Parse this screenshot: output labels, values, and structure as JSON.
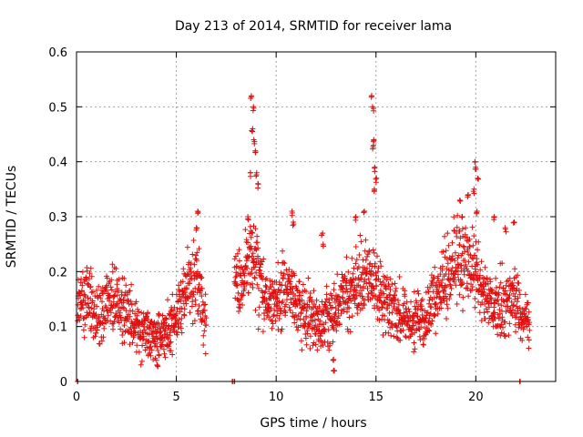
{
  "chart_data": {
    "type": "scatter",
    "title": "Day 213 of 2014, SRMTID for receiver lama",
    "xlabel": "GPS time / hours",
    "ylabel": "SRMTID / TECUs",
    "xlim": [
      0,
      24
    ],
    "ylim": [
      0,
      0.6
    ],
    "x_ticks": [
      0,
      5,
      10,
      15,
      20
    ],
    "x_tick_labels": [
      "0",
      "5",
      "10",
      "15",
      "20"
    ],
    "y_ticks": [
      0,
      0.1,
      0.2,
      0.3,
      0.4,
      0.5,
      0.6
    ],
    "y_tick_labels": [
      "0",
      "0.1",
      "0.2",
      "0.3",
      "0.4",
      "0.5",
      "0.6"
    ],
    "grid": true,
    "marker": "+",
    "color": "#e01010",
    "series_name": "SRMTID",
    "profile_description": "Dense cloud of points; mean level vs hour with spread",
    "profile": [
      {
        "x": 0.0,
        "y": 0.14
      },
      {
        "x": 0.5,
        "y": 0.15
      },
      {
        "x": 1.0,
        "y": 0.13
      },
      {
        "x": 1.5,
        "y": 0.14
      },
      {
        "x": 2.0,
        "y": 0.15
      },
      {
        "x": 2.5,
        "y": 0.13
      },
      {
        "x": 3.0,
        "y": 0.1
      },
      {
        "x": 3.5,
        "y": 0.085
      },
      {
        "x": 4.0,
        "y": 0.075
      },
      {
        "x": 4.5,
        "y": 0.1
      },
      {
        "x": 5.0,
        "y": 0.12
      },
      {
        "x": 5.5,
        "y": 0.17
      },
      {
        "x": 6.0,
        "y": 0.19
      },
      {
        "x": 6.5,
        "y": 0.1
      },
      {
        "x": 7.9,
        "y": 0.2
      },
      {
        "x": 8.3,
        "y": 0.19
      },
      {
        "x": 8.7,
        "y": 0.24
      },
      {
        "x": 9.0,
        "y": 0.2
      },
      {
        "x": 9.5,
        "y": 0.15
      },
      {
        "x": 10.0,
        "y": 0.14
      },
      {
        "x": 10.5,
        "y": 0.17
      },
      {
        "x": 11.0,
        "y": 0.15
      },
      {
        "x": 11.5,
        "y": 0.12
      },
      {
        "x": 12.0,
        "y": 0.11
      },
      {
        "x": 12.5,
        "y": 0.12
      },
      {
        "x": 13.0,
        "y": 0.13
      },
      {
        "x": 13.5,
        "y": 0.16
      },
      {
        "x": 14.0,
        "y": 0.17
      },
      {
        "x": 14.5,
        "y": 0.2
      },
      {
        "x": 15.0,
        "y": 0.18
      },
      {
        "x": 15.5,
        "y": 0.14
      },
      {
        "x": 16.0,
        "y": 0.13
      },
      {
        "x": 16.5,
        "y": 0.11
      },
      {
        "x": 17.0,
        "y": 0.11
      },
      {
        "x": 17.5,
        "y": 0.12
      },
      {
        "x": 18.0,
        "y": 0.16
      },
      {
        "x": 18.5,
        "y": 0.18
      },
      {
        "x": 19.0,
        "y": 0.22
      },
      {
        "x": 19.5,
        "y": 0.22
      },
      {
        "x": 20.0,
        "y": 0.2
      },
      {
        "x": 20.5,
        "y": 0.16
      },
      {
        "x": 21.0,
        "y": 0.13
      },
      {
        "x": 21.5,
        "y": 0.15
      },
      {
        "x": 22.0,
        "y": 0.14
      },
      {
        "x": 22.5,
        "y": 0.12
      },
      {
        "x": 22.7,
        "y": 0.1
      }
    ],
    "spikes": [
      {
        "x": 6.1,
        "y": 0.31
      },
      {
        "x": 6.0,
        "y": 0.28
      },
      {
        "x": 8.75,
        "y": 0.52
      },
      {
        "x": 8.85,
        "y": 0.5
      },
      {
        "x": 8.8,
        "y": 0.46
      },
      {
        "x": 8.9,
        "y": 0.44
      },
      {
        "x": 8.95,
        "y": 0.42
      },
      {
        "x": 8.7,
        "y": 0.38
      },
      {
        "x": 9.0,
        "y": 0.38
      },
      {
        "x": 9.1,
        "y": 0.36
      },
      {
        "x": 8.6,
        "y": 0.3
      },
      {
        "x": 10.8,
        "y": 0.31
      },
      {
        "x": 10.85,
        "y": 0.29
      },
      {
        "x": 12.3,
        "y": 0.27
      },
      {
        "x": 12.35,
        "y": 0.25
      },
      {
        "x": 14.8,
        "y": 0.52
      },
      {
        "x": 14.85,
        "y": 0.5
      },
      {
        "x": 14.9,
        "y": 0.44
      },
      {
        "x": 14.85,
        "y": 0.43
      },
      {
        "x": 14.95,
        "y": 0.39
      },
      {
        "x": 15.0,
        "y": 0.37
      },
      {
        "x": 14.9,
        "y": 0.35
      },
      {
        "x": 14.0,
        "y": 0.3
      },
      {
        "x": 14.4,
        "y": 0.31
      },
      {
        "x": 19.2,
        "y": 0.33
      },
      {
        "x": 19.3,
        "y": 0.3
      },
      {
        "x": 19.6,
        "y": 0.34
      },
      {
        "x": 19.95,
        "y": 0.4
      },
      {
        "x": 20.0,
        "y": 0.39
      },
      {
        "x": 20.1,
        "y": 0.37
      },
      {
        "x": 19.9,
        "y": 0.35
      },
      {
        "x": 20.05,
        "y": 0.31
      },
      {
        "x": 20.9,
        "y": 0.3
      },
      {
        "x": 21.5,
        "y": 0.28
      },
      {
        "x": 21.9,
        "y": 0.29
      },
      {
        "x": 4.05,
        "y": 0.03
      },
      {
        "x": 12.9,
        "y": 0.02
      },
      {
        "x": 12.85,
        "y": 0.04
      }
    ],
    "zero_points": [
      {
        "x": 0.05,
        "y": 0
      },
      {
        "x": 7.8,
        "y": 0
      },
      {
        "x": 7.9,
        "y": 0
      },
      {
        "x": 22.2,
        "y": 0
      }
    ],
    "gaps": [
      [
        6.8,
        7.8
      ],
      [
        22.8,
        24
      ]
    ]
  }
}
